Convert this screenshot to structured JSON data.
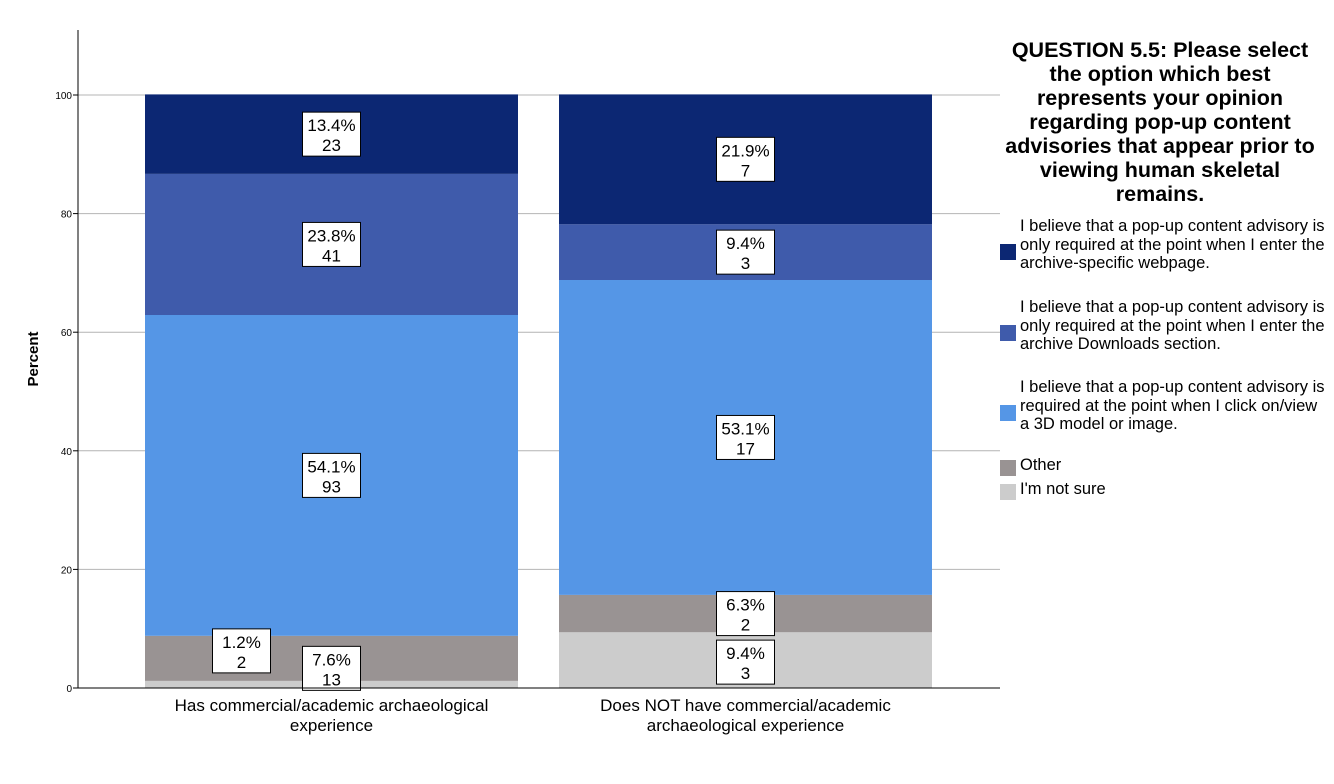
{
  "chart_data": {
    "type": "bar",
    "stacked": true,
    "ylabel": "Percent",
    "ylim": [
      0,
      110
    ],
    "yticks": [
      "0",
      "20",
      "40",
      "60",
      "80",
      "100"
    ],
    "grid": true,
    "legend_position": "right",
    "legend_title": "QUESTION 5.5: Please select the option which best represents your opinion regarding pop-up content advisories that appear prior to viewing human skeletal remains.",
    "categories": [
      "Has commercial/academic archaeological experience",
      "Does NOT have commercial/academic archaeological experience"
    ],
    "series": [
      {
        "name": "I'm not sure",
        "color": "#cccccc",
        "values": [
          1.2,
          9.4
        ],
        "pct_labels": [
          "1.2%",
          "9.4%"
        ],
        "count_labels": [
          "2",
          "3"
        ]
      },
      {
        "name": "Other",
        "color": "#999393",
        "values": [
          7.6,
          6.3
        ],
        "pct_labels": [
          "7.6%",
          "6.3%"
        ],
        "count_labels": [
          "13",
          "2"
        ]
      },
      {
        "name": "I believe that a pop-up content advisory is required at the point when I click on/view a 3D model or image.",
        "color": "#5596e6",
        "values": [
          54.1,
          53.1
        ],
        "pct_labels": [
          "54.1%",
          "53.1%"
        ],
        "count_labels": [
          "93",
          "17"
        ]
      },
      {
        "name": "I believe that a pop-up content advisory is only required at the point when I enter the archive Downloads section.",
        "color": "#3f5bab",
        "values": [
          23.8,
          9.4
        ],
        "pct_labels": [
          "23.8%",
          "9.4%"
        ],
        "count_labels": [
          "41",
          "3"
        ]
      },
      {
        "name": "I believe that a pop-up content advisory is only required at the point when I enter the archive-specific webpage.",
        "color": "#0c2773",
        "values": [
          13.4,
          21.9
        ],
        "pct_labels": [
          "13.4%",
          "21.9%"
        ],
        "count_labels": [
          "23",
          "7"
        ]
      }
    ],
    "legend_order": [
      4,
      3,
      2,
      1,
      0
    ]
  }
}
